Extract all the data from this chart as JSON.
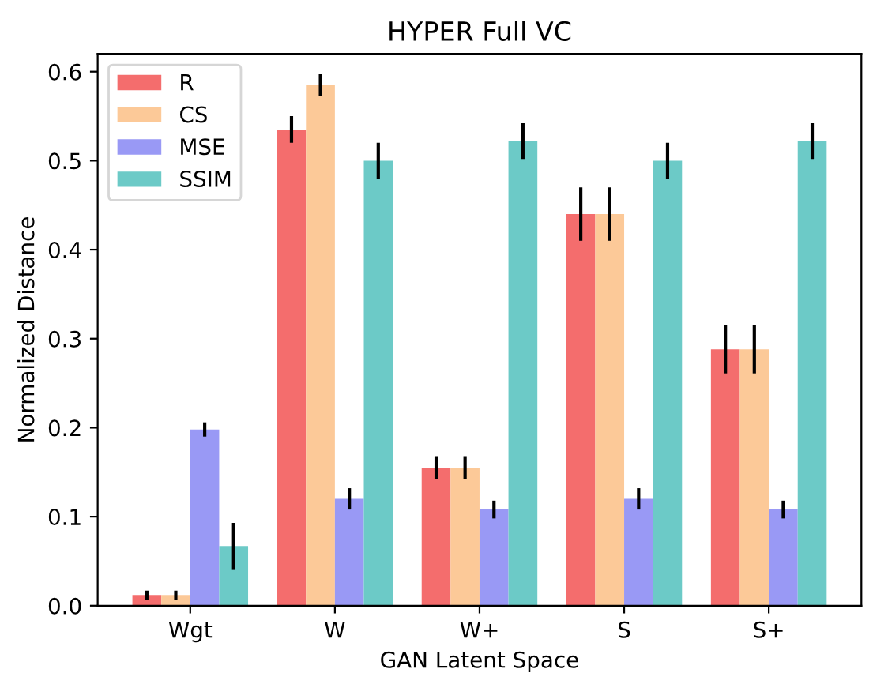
{
  "chart_data": {
    "type": "bar",
    "title": "HYPER Full VC",
    "xlabel": "GAN Latent Space",
    "ylabel": "Normalized Distance",
    "categories": [
      "Wgt",
      "W",
      "W+",
      "S",
      "S+"
    ],
    "series": [
      {
        "name": "R",
        "color": "#f46d6d",
        "values": [
          0.012,
          0.535,
          0.155,
          0.44,
          0.288
        ],
        "errors": [
          0.005,
          0.015,
          0.013,
          0.03,
          0.027
        ]
      },
      {
        "name": "CS",
        "color": "#fcc998",
        "values": [
          0.012,
          0.585,
          0.155,
          0.44,
          0.288
        ],
        "errors": [
          0.005,
          0.012,
          0.013,
          0.03,
          0.027
        ]
      },
      {
        "name": "MSE",
        "color": "#9999f5",
        "values": [
          0.198,
          0.12,
          0.108,
          0.12,
          0.108
        ],
        "errors": [
          0.008,
          0.012,
          0.01,
          0.012,
          0.01
        ]
      },
      {
        "name": "SSIM",
        "color": "#6ccac7",
        "values": [
          0.067,
          0.5,
          0.522,
          0.5,
          0.522
        ],
        "errors": [
          0.026,
          0.02,
          0.02,
          0.02,
          0.02
        ]
      }
    ],
    "ylim": [
      0,
      0.62
    ],
    "yticks": [
      {
        "value": 0,
        "label": "0.0"
      },
      0.1,
      0.2,
      0.3,
      0.4,
      0.5,
      0.6
    ],
    "legend": "top left",
    "grid": false
  }
}
